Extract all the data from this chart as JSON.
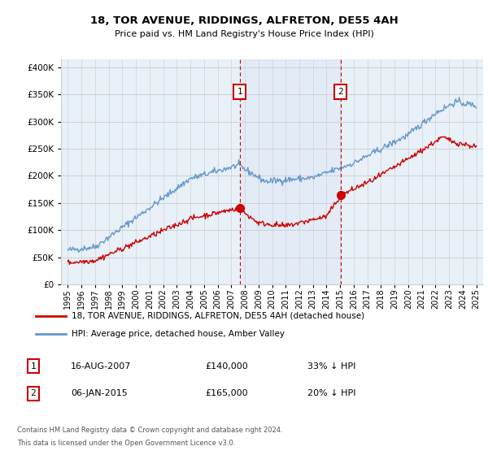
{
  "title": "18, TOR AVENUE, RIDDINGS, ALFRETON, DE55 4AH",
  "subtitle": "Price paid vs. HM Land Registry's House Price Index (HPI)",
  "yticks": [
    0,
    50000,
    100000,
    150000,
    200000,
    250000,
    300000,
    350000,
    400000
  ],
  "ylim": [
    0,
    415000
  ],
  "xlim_start": 1994.5,
  "xlim_end": 2025.5,
  "plot_bg": "#e8f0f8",
  "hpi_color": "#6699cc",
  "price_color": "#cc0000",
  "vline_color": "#cc0000",
  "sale1_x": 2007.62,
  "sale1_y": 140000,
  "sale1_label": "1",
  "sale2_x": 2015.03,
  "sale2_y": 165000,
  "sale2_label": "2",
  "sale1_date": "16-AUG-2007",
  "sale1_price": "£140,000",
  "sale1_hpi": "33% ↓ HPI",
  "sale2_date": "06-JAN-2015",
  "sale2_price": "£165,000",
  "sale2_hpi": "20% ↓ HPI",
  "legend_line1": "18, TOR AVENUE, RIDDINGS, ALFRETON, DE55 4AH (detached house)",
  "legend_line2": "HPI: Average price, detached house, Amber Valley",
  "footer1": "Contains HM Land Registry data © Crown copyright and database right 2024.",
  "footer2": "This data is licensed under the Open Government Licence v3.0.",
  "xticks": [
    1995,
    1996,
    1997,
    1998,
    1999,
    2000,
    2001,
    2002,
    2003,
    2004,
    2005,
    2006,
    2007,
    2008,
    2009,
    2010,
    2011,
    2012,
    2013,
    2014,
    2015,
    2016,
    2017,
    2018,
    2019,
    2020,
    2021,
    2022,
    2023,
    2024,
    2025
  ]
}
